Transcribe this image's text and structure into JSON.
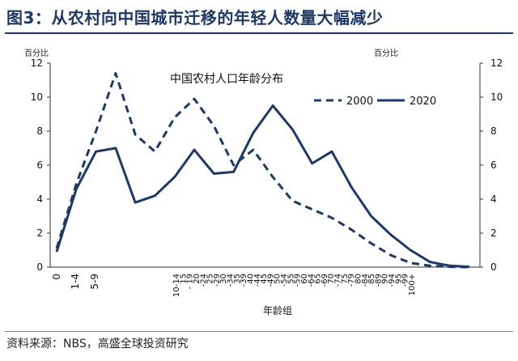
{
  "figure_title": "图3：从农村向中国城市迁移的年轻人数量大幅减少",
  "source_text": "资料来源：NBS，高盛全球投资研究",
  "chart_data": {
    "type": "line",
    "title": "中国农村人口年龄分布",
    "xlabel": "年龄组",
    "ylabel_left": "百分比",
    "ylabel_right": "百分比",
    "ylim": [
      0,
      12
    ],
    "yticks": [
      0,
      2,
      4,
      6,
      8,
      10,
      12
    ],
    "grid": false,
    "legend_position": "top-right",
    "categories": [
      "0",
      "1-4",
      "5-9",
      "10-14",
      "15-19",
      "20-24",
      "25-29",
      "30-34",
      "35-39",
      "40-44",
      "45-49",
      "50-54",
      "55-59",
      "60-64",
      "65-69",
      "70-74",
      "75-79",
      "80-84",
      "85-89",
      "90-94",
      "95-99",
      "100+"
    ],
    "x_tick_labels": [
      "0",
      "1-4",
      "5-9",
      "10-14",
      "15",
      "- 19",
      "20",
      "-24",
      "25",
      "-29",
      "30",
      "-34",
      "35",
      "-39",
      "40",
      "-44",
      "45",
      "-49",
      "50",
      "-54",
      "55",
      "-59",
      "60",
      "-64",
      "65",
      "-69",
      "70",
      "-74",
      "75",
      "-79",
      "80",
      "-84",
      "85",
      "-89",
      "90",
      "-94",
      "95",
      "-99",
      "100+"
    ],
    "series": [
      {
        "name": "2000",
        "style": "dashed",
        "color": "#1f3864",
        "values": [
          1.1,
          4.9,
          8.0,
          11.4,
          7.8,
          6.8,
          8.8,
          9.9,
          8.3,
          6.0,
          6.9,
          5.3,
          3.9,
          3.4,
          2.9,
          2.2,
          1.4,
          0.7,
          0.25,
          0.08,
          0.02,
          0.0
        ]
      },
      {
        "name": "2020",
        "style": "solid",
        "color": "#1f3864",
        "values": [
          0.9,
          4.6,
          6.8,
          7.0,
          3.8,
          4.2,
          5.3,
          6.9,
          5.5,
          5.6,
          7.9,
          9.5,
          8.1,
          6.1,
          6.8,
          4.7,
          3.0,
          1.9,
          1.0,
          0.3,
          0.08,
          0.02
        ]
      }
    ]
  }
}
